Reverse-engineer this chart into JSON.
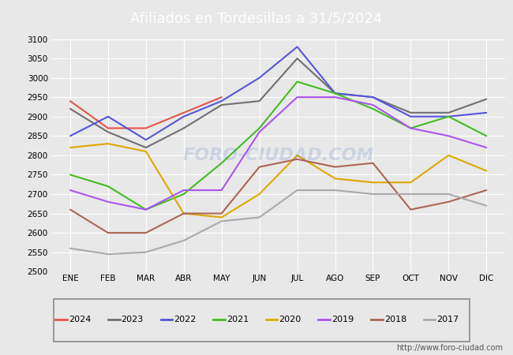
{
  "title": "Afiliados en Tordesillas a 31/5/2024",
  "title_bg_color": "#4472c4",
  "title_text_color": "white",
  "ylim": [
    2500,
    3100
  ],
  "ytick_step": 50,
  "months": [
    "ENE",
    "FEB",
    "MAR",
    "ABR",
    "MAY",
    "JUN",
    "JUL",
    "AGO",
    "SEP",
    "OCT",
    "NOV",
    "DIC"
  ],
  "watermark": "FORO-CIUDAD.COM",
  "url": "http://www.foro-ciudad.com",
  "series": {
    "2024": {
      "color": "#e8534a",
      "data": [
        2940,
        2870,
        2870,
        2910,
        2950,
        null,
        null,
        null,
        null,
        null,
        null,
        null
      ]
    },
    "2023": {
      "color": "#707070",
      "data": [
        2920,
        2860,
        2820,
        2870,
        2930,
        2940,
        3050,
        2960,
        2950,
        2910,
        2910,
        2945
      ]
    },
    "2022": {
      "color": "#5555dd",
      "data": [
        2850,
        2900,
        2840,
        2900,
        2940,
        3000,
        3080,
        2960,
        2950,
        2900,
        2900,
        2910
      ]
    },
    "2021": {
      "color": "#44bb22",
      "data": [
        2750,
        2720,
        2660,
        2700,
        2780,
        2870,
        2990,
        2960,
        2920,
        2870,
        2900,
        2850
      ]
    },
    "2020": {
      "color": "#ddaa00",
      "data": [
        2820,
        2830,
        2810,
        2650,
        2640,
        2700,
        2800,
        2740,
        2730,
        2730,
        2800,
        2760
      ]
    },
    "2019": {
      "color": "#aa55ee",
      "data": [
        2710,
        2680,
        2660,
        2710,
        2710,
        2860,
        2950,
        2950,
        2930,
        2870,
        2850,
        2820
      ]
    },
    "2018": {
      "color": "#aa6655",
      "data": [
        2660,
        2600,
        2600,
        2650,
        2650,
        2770,
        2790,
        2770,
        2780,
        2660,
        2680,
        2710
      ]
    },
    "2017": {
      "color": "#aaaaaa",
      "data": [
        2560,
        2545,
        2550,
        2580,
        2630,
        2640,
        2710,
        2710,
        2700,
        2700,
        2700,
        2670
      ]
    }
  },
  "legend_order": [
    "2024",
    "2023",
    "2022",
    "2021",
    "2020",
    "2019",
    "2018",
    "2017"
  ],
  "bg_color": "#e8e8e8",
  "plot_bg_color": "#e8e8e8",
  "grid_color": "white"
}
